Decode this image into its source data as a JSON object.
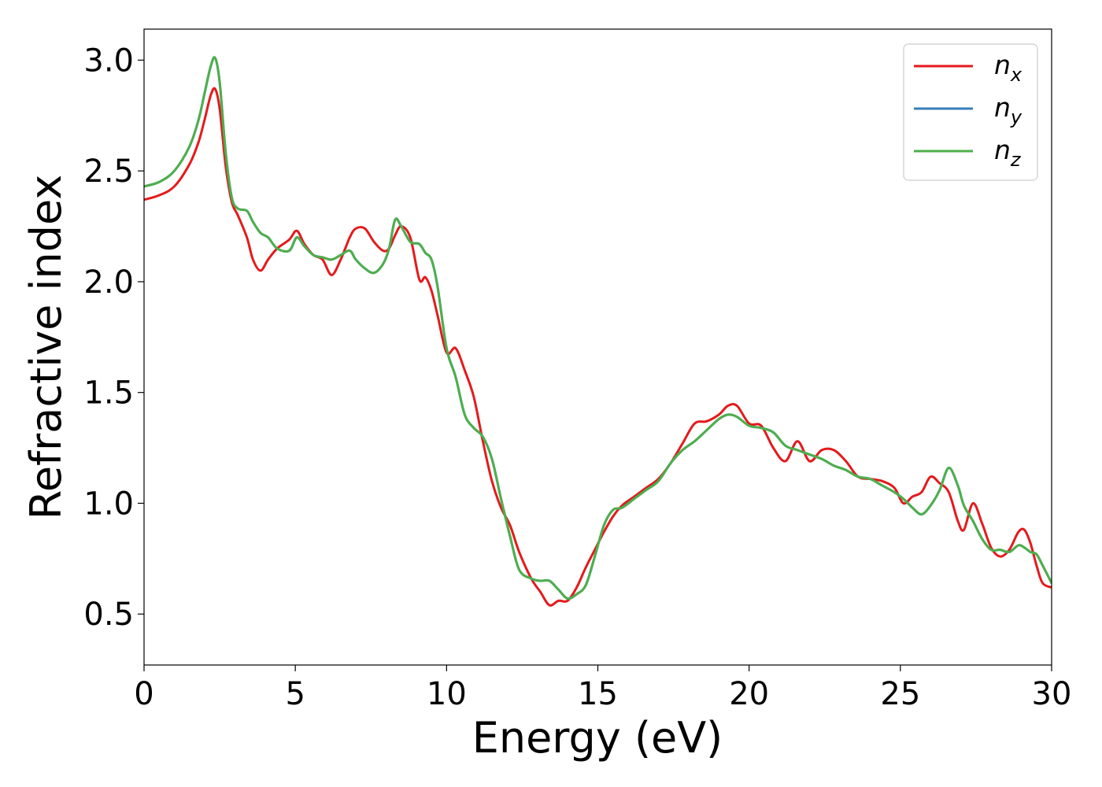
{
  "chart_data": {
    "type": "line",
    "xlabel": "Energy (eV)",
    "ylabel": "Refractive index",
    "xlim": [
      0,
      30
    ],
    "ylim": [
      0.27,
      3.14
    ],
    "xticks": [
      0,
      5,
      10,
      15,
      20,
      25,
      30
    ],
    "xtick_labels": [
      "0",
      "5",
      "10",
      "15",
      "20",
      "25",
      "30"
    ],
    "yticks": [
      0.5,
      1.0,
      1.5,
      2.0,
      2.5,
      3.0
    ],
    "ytick_labels": [
      "0.5",
      "1.0",
      "1.5",
      "2.0",
      "2.5",
      "3.0"
    ],
    "grid": false,
    "legend_position": "top-right",
    "series": [
      {
        "name": "n_x",
        "legend_base": "n",
        "legend_sub": "x",
        "color": "#e41a1c",
        "x": [
          0,
          0.5,
          1.0,
          1.5,
          1.8,
          2.0,
          2.2,
          2.35,
          2.5,
          2.7,
          2.9,
          3.1,
          3.4,
          3.6,
          3.85,
          4.1,
          4.4,
          4.8,
          5.05,
          5.3,
          5.6,
          5.9,
          6.2,
          6.5,
          6.8,
          7.0,
          7.3,
          7.6,
          7.9,
          8.1,
          8.3,
          8.5,
          8.8,
          9.1,
          9.3,
          9.5,
          9.7,
          10.0,
          10.3,
          10.6,
          10.9,
          11.2,
          11.5,
          11.8,
          12.1,
          12.4,
          12.8,
          13.1,
          13.4,
          13.7,
          14.0,
          14.3,
          14.6,
          14.9,
          15.2,
          15.5,
          15.8,
          16.2,
          16.6,
          17.0,
          17.4,
          17.8,
          18.2,
          18.6,
          19.0,
          19.3,
          19.6,
          20.0,
          20.4,
          20.8,
          21.2,
          21.6,
          22.0,
          22.4,
          22.8,
          23.2,
          23.6,
          24.0,
          24.4,
          24.8,
          25.1,
          25.4,
          25.7,
          26.0,
          26.3,
          26.6,
          26.9,
          27.1,
          27.4,
          27.7,
          28.0,
          28.3,
          28.6,
          28.9,
          29.1,
          29.3,
          29.5,
          29.7,
          30.0
        ],
        "y": [
          2.37,
          2.39,
          2.43,
          2.53,
          2.63,
          2.73,
          2.84,
          2.87,
          2.78,
          2.52,
          2.36,
          2.3,
          2.2,
          2.1,
          2.05,
          2.1,
          2.15,
          2.19,
          2.23,
          2.17,
          2.12,
          2.1,
          2.03,
          2.1,
          2.2,
          2.24,
          2.24,
          2.18,
          2.14,
          2.15,
          2.21,
          2.25,
          2.2,
          2.01,
          2.02,
          1.96,
          1.85,
          1.68,
          1.7,
          1.6,
          1.48,
          1.28,
          1.1,
          0.98,
          0.9,
          0.78,
          0.66,
          0.6,
          0.54,
          0.56,
          0.56,
          0.62,
          0.71,
          0.79,
          0.87,
          0.94,
          0.99,
          1.03,
          1.07,
          1.11,
          1.18,
          1.27,
          1.36,
          1.37,
          1.4,
          1.44,
          1.44,
          1.36,
          1.35,
          1.25,
          1.19,
          1.28,
          1.19,
          1.24,
          1.24,
          1.19,
          1.12,
          1.11,
          1.1,
          1.07,
          1.0,
          1.03,
          1.05,
          1.12,
          1.09,
          1.05,
          0.92,
          0.88,
          1.0,
          0.91,
          0.8,
          0.76,
          0.79,
          0.87,
          0.88,
          0.82,
          0.72,
          0.64,
          0.62
        ]
      },
      {
        "name": "n_y",
        "legend_base": "n",
        "legend_sub": "y",
        "color": "#377eb8",
        "x": [
          0,
          0.5,
          1.0,
          1.5,
          1.8,
          2.0,
          2.2,
          2.35,
          2.5,
          2.7,
          2.9,
          3.1,
          3.4,
          3.6,
          3.85,
          4.1,
          4.4,
          4.8,
          5.05,
          5.3,
          5.6,
          5.9,
          6.2,
          6.5,
          6.8,
          7.0,
          7.3,
          7.6,
          7.9,
          8.1,
          8.3,
          8.5,
          8.8,
          9.1,
          9.3,
          9.5,
          9.7,
          10.0,
          10.3,
          10.6,
          10.9,
          11.2,
          11.5,
          11.8,
          12.1,
          12.4,
          12.8,
          13.1,
          13.4,
          13.7,
          14.0,
          14.3,
          14.6,
          14.9,
          15.2,
          15.5,
          15.8,
          16.2,
          16.6,
          17.0,
          17.4,
          17.8,
          18.2,
          18.6,
          19.0,
          19.3,
          19.6,
          20.0,
          20.4,
          20.8,
          21.2,
          21.6,
          22.0,
          22.4,
          22.8,
          23.2,
          23.6,
          24.0,
          24.4,
          24.8,
          25.1,
          25.4,
          25.7,
          26.0,
          26.3,
          26.6,
          26.9,
          27.1,
          27.4,
          27.7,
          28.0,
          28.3,
          28.6,
          28.9,
          29.1,
          29.3,
          29.5,
          29.7,
          30.0
        ],
        "y": [
          2.43,
          2.45,
          2.5,
          2.61,
          2.73,
          2.85,
          2.97,
          3.01,
          2.9,
          2.58,
          2.38,
          2.33,
          2.32,
          2.27,
          2.22,
          2.2,
          2.15,
          2.14,
          2.2,
          2.16,
          2.12,
          2.11,
          2.1,
          2.12,
          2.14,
          2.1,
          2.06,
          2.04,
          2.08,
          2.15,
          2.28,
          2.25,
          2.18,
          2.17,
          2.13,
          2.1,
          1.98,
          1.7,
          1.57,
          1.4,
          1.34,
          1.3,
          1.2,
          1.02,
          0.85,
          0.7,
          0.66,
          0.65,
          0.65,
          0.61,
          0.57,
          0.59,
          0.63,
          0.76,
          0.9,
          0.97,
          0.98,
          1.02,
          1.06,
          1.1,
          1.18,
          1.24,
          1.28,
          1.33,
          1.38,
          1.4,
          1.39,
          1.35,
          1.34,
          1.32,
          1.26,
          1.24,
          1.22,
          1.2,
          1.17,
          1.15,
          1.12,
          1.11,
          1.08,
          1.05,
          1.02,
          0.98,
          0.95,
          0.99,
          1.06,
          1.16,
          1.08,
          0.99,
          0.92,
          0.84,
          0.79,
          0.79,
          0.78,
          0.81,
          0.8,
          0.78,
          0.77,
          0.72,
          0.64
        ]
      },
      {
        "name": "n_z",
        "legend_base": "n",
        "legend_sub": "z",
        "color": "#4daf4a",
        "x": [
          0,
          0.5,
          1.0,
          1.5,
          1.8,
          2.0,
          2.2,
          2.35,
          2.5,
          2.7,
          2.9,
          3.1,
          3.4,
          3.6,
          3.85,
          4.1,
          4.4,
          4.8,
          5.05,
          5.3,
          5.6,
          5.9,
          6.2,
          6.5,
          6.8,
          7.0,
          7.3,
          7.6,
          7.9,
          8.1,
          8.3,
          8.5,
          8.8,
          9.1,
          9.3,
          9.5,
          9.7,
          10.0,
          10.3,
          10.6,
          10.9,
          11.2,
          11.5,
          11.8,
          12.1,
          12.4,
          12.8,
          13.1,
          13.4,
          13.7,
          14.0,
          14.3,
          14.6,
          14.9,
          15.2,
          15.5,
          15.8,
          16.2,
          16.6,
          17.0,
          17.4,
          17.8,
          18.2,
          18.6,
          19.0,
          19.3,
          19.6,
          20.0,
          20.4,
          20.8,
          21.2,
          21.6,
          22.0,
          22.4,
          22.8,
          23.2,
          23.6,
          24.0,
          24.4,
          24.8,
          25.1,
          25.4,
          25.7,
          26.0,
          26.3,
          26.6,
          26.9,
          27.1,
          27.4,
          27.7,
          28.0,
          28.3,
          28.6,
          28.9,
          29.1,
          29.3,
          29.5,
          29.7,
          30.0
        ],
        "y": [
          2.43,
          2.45,
          2.5,
          2.61,
          2.73,
          2.85,
          2.97,
          3.01,
          2.9,
          2.58,
          2.38,
          2.33,
          2.32,
          2.27,
          2.22,
          2.2,
          2.15,
          2.14,
          2.2,
          2.16,
          2.12,
          2.11,
          2.1,
          2.12,
          2.14,
          2.1,
          2.06,
          2.04,
          2.08,
          2.15,
          2.28,
          2.25,
          2.18,
          2.17,
          2.13,
          2.1,
          1.98,
          1.7,
          1.57,
          1.4,
          1.34,
          1.3,
          1.2,
          1.02,
          0.85,
          0.7,
          0.66,
          0.65,
          0.65,
          0.61,
          0.57,
          0.59,
          0.63,
          0.76,
          0.9,
          0.97,
          0.98,
          1.02,
          1.06,
          1.1,
          1.18,
          1.24,
          1.28,
          1.33,
          1.38,
          1.4,
          1.39,
          1.35,
          1.34,
          1.32,
          1.26,
          1.24,
          1.22,
          1.2,
          1.17,
          1.15,
          1.12,
          1.11,
          1.08,
          1.05,
          1.02,
          0.98,
          0.95,
          0.99,
          1.06,
          1.16,
          1.08,
          0.99,
          0.92,
          0.84,
          0.79,
          0.79,
          0.78,
          0.81,
          0.8,
          0.78,
          0.77,
          0.72,
          0.64
        ]
      }
    ]
  }
}
